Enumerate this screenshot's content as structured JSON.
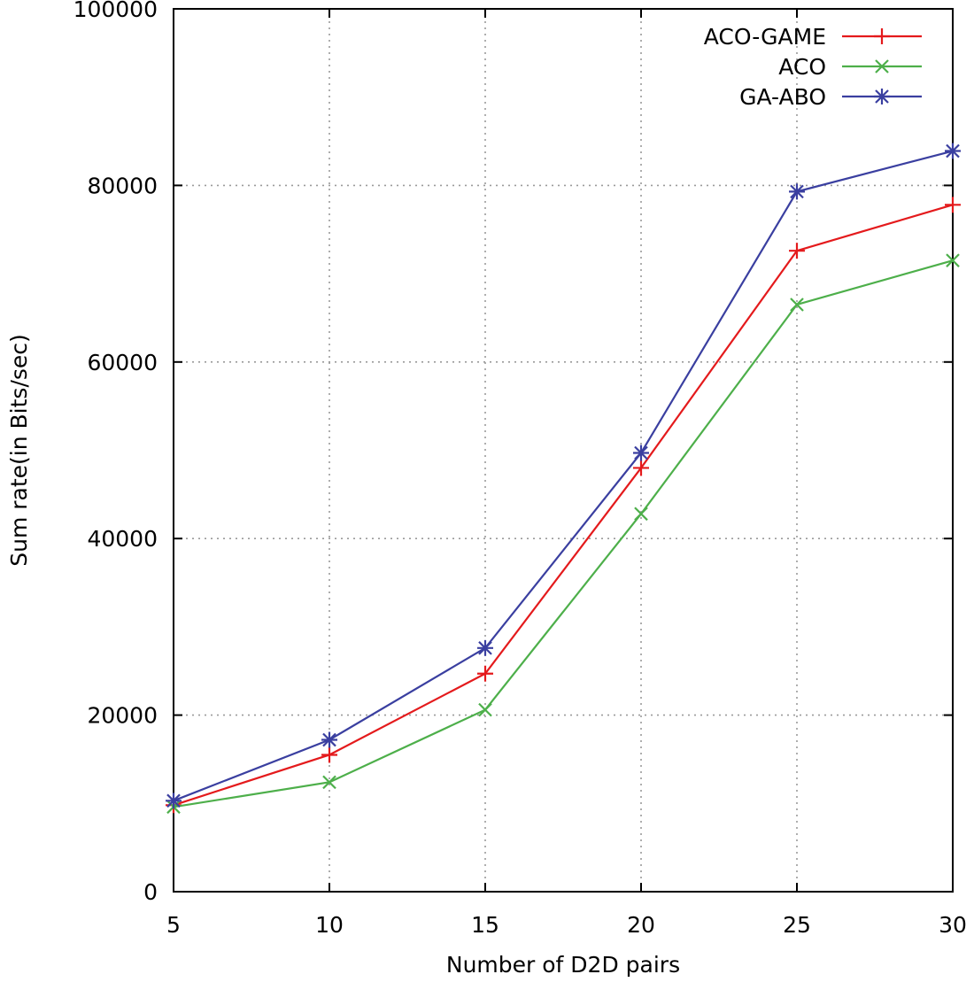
{
  "chart_data": {
    "type": "line",
    "title": "",
    "xlabel": "Number of D2D pairs",
    "ylabel": "Sum rate(in Bits/sec)",
    "x": [
      5,
      10,
      15,
      20,
      25,
      30
    ],
    "xlim": [
      5,
      30
    ],
    "ylim": [
      0,
      100000
    ],
    "xticks": [
      5,
      10,
      15,
      20,
      25,
      30
    ],
    "yticks": [
      0,
      20000,
      40000,
      60000,
      80000,
      100000
    ],
    "grid": true,
    "legend_position": "top-right",
    "series": [
      {
        "name": "ACO-GAME",
        "color": "#e41a1c",
        "marker": "plus",
        "values": [
          9800,
          15500,
          24700,
          48000,
          72600,
          77800
        ]
      },
      {
        "name": "ACO",
        "color": "#4daf4a",
        "marker": "cross",
        "values": [
          9600,
          12400,
          20600,
          42800,
          66500,
          71500
        ]
      },
      {
        "name": "GA-ABO",
        "color": "#3a3fa0",
        "marker": "star",
        "values": [
          10300,
          17200,
          27600,
          49700,
          79300,
          83900
        ]
      }
    ]
  }
}
